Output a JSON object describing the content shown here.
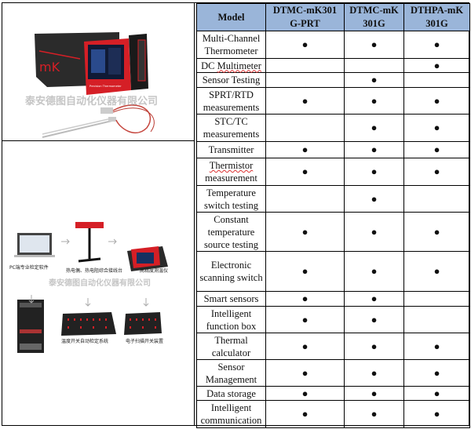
{
  "images": {
    "top": {
      "brand_mark": "mK",
      "watermark": "泰安德图自动化仪器有限公司",
      "screen_caption": "Precision Thermometer"
    },
    "bottom": {
      "watermark": "泰安德图自动化仪器有限公司",
      "captions": [
        "PC端专业检定软件",
        "热电偶、热电阻综合接线台",
        "高精度测温仪",
        "温度开关自动检定系统",
        "电子扫描开关装置"
      ]
    }
  },
  "table": {
    "header": [
      "Model",
      "DTMC-mK301 G-PRT",
      "DTMC-mK 301G",
      "DTHPA-mK 301G"
    ],
    "mark": "●",
    "accent": "#9ab5d9",
    "rows": [
      {
        "feature": "Multi-Channel Thermometer",
        "support": [
          true,
          true,
          true
        ]
      },
      {
        "feature": "DC Multimeter",
        "support": [
          false,
          false,
          true
        ]
      },
      {
        "feature": "Sensor Testing",
        "support": [
          false,
          true,
          false
        ]
      },
      {
        "feature": "SPRT/RTD measurements",
        "support": [
          true,
          true,
          true
        ]
      },
      {
        "feature": "STC/TC measurements",
        "support": [
          false,
          true,
          true
        ]
      },
      {
        "feature": "Transmitter",
        "support": [
          true,
          true,
          true
        ]
      },
      {
        "feature": "Thermistor measurement",
        "support": [
          true,
          true,
          true
        ]
      },
      {
        "feature": "Temperature switch testing",
        "support": [
          false,
          true,
          false
        ]
      },
      {
        "feature": "Constant temperature source testing",
        "support": [
          true,
          true,
          true
        ]
      },
      {
        "feature": "Electronic scanning switch",
        "support": [
          true,
          true,
          true
        ]
      },
      {
        "feature": "Smart sensors",
        "support": [
          true,
          true,
          false
        ]
      },
      {
        "feature": "Intelligent function box",
        "support": [
          true,
          true,
          false
        ]
      },
      {
        "feature": "Thermal calculator",
        "support": [
          true,
          true,
          true
        ]
      },
      {
        "feature": "Sensor Management",
        "support": [
          true,
          true,
          true
        ]
      },
      {
        "feature": "Data storage",
        "support": [
          true,
          true,
          true
        ]
      },
      {
        "feature": "Intelligent communication",
        "support": [
          true,
          true,
          true
        ]
      }
    ]
  }
}
